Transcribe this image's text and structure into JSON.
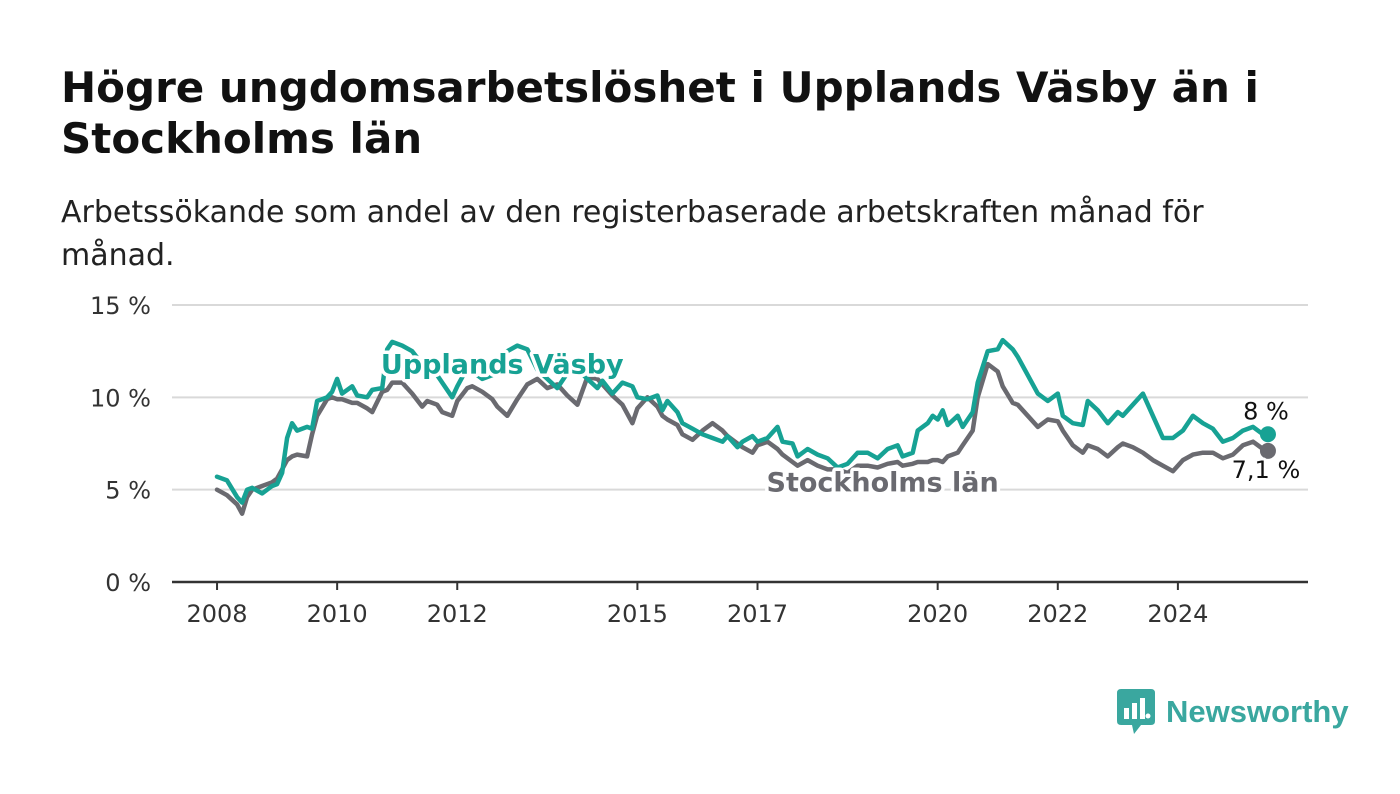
{
  "title": "Högre ungdomsarbetslöshet i Upplands Väsby än i Stockholms län",
  "subtitle": "Arbetssökande som andel av den registerbaserade arbetskraften månad för månad.",
  "brand": {
    "name": "Newsworthy",
    "color": "#3aa79f"
  },
  "chart_data": {
    "type": "line",
    "y_ticks": [
      "0 %",
      "5 %",
      "10 %",
      "15 %"
    ],
    "x_ticks": [
      "2008",
      "2010",
      "2012",
      "2015",
      "2017",
      "2020",
      "2022",
      "2024"
    ],
    "ylim": [
      0,
      15
    ],
    "xlim": [
      "2007-04",
      "2026-03"
    ],
    "grid": true,
    "legend": "direct-labels",
    "series": [
      {
        "name": "Upplands Väsby",
        "color": "#17a294",
        "end_label": "8 %",
        "points": [
          [
            "2008-01",
            5.7
          ],
          [
            "2008-03",
            5.5
          ],
          [
            "2008-05",
            4.6
          ],
          [
            "2008-06",
            4.3
          ],
          [
            "2008-07",
            5.0
          ],
          [
            "2008-08",
            5.1
          ],
          [
            "2008-10",
            4.8
          ],
          [
            "2008-12",
            5.2
          ],
          [
            "2009-01",
            5.3
          ],
          [
            "2009-02",
            5.9
          ],
          [
            "2009-03",
            7.8
          ],
          [
            "2009-04",
            8.6
          ],
          [
            "2009-05",
            8.2
          ],
          [
            "2009-07",
            8.4
          ],
          [
            "2009-08",
            8.3
          ],
          [
            "2009-09",
            9.8
          ],
          [
            "2009-11",
            10.0
          ],
          [
            "2009-12",
            10.3
          ],
          [
            "2010-01",
            11.0
          ],
          [
            "2010-02",
            10.2
          ],
          [
            "2010-04",
            10.6
          ],
          [
            "2010-05",
            10.1
          ],
          [
            "2010-07",
            10.0
          ],
          [
            "2010-08",
            10.4
          ],
          [
            "2010-10",
            10.5
          ],
          [
            "2010-11",
            12.6
          ],
          [
            "2010-12",
            13.0
          ],
          [
            "2011-02",
            12.8
          ],
          [
            "2011-04",
            12.5
          ],
          [
            "2011-06",
            11.8
          ],
          [
            "2011-07",
            11.5
          ],
          [
            "2011-09",
            11.2
          ],
          [
            "2011-10",
            10.8
          ],
          [
            "2011-12",
            10.0
          ],
          [
            "2012-01",
            10.6
          ],
          [
            "2012-03",
            11.6
          ],
          [
            "2012-04",
            11.4
          ],
          [
            "2012-06",
            11.0
          ],
          [
            "2012-08",
            11.2
          ],
          [
            "2012-09",
            12.0
          ],
          [
            "2012-11",
            12.5
          ],
          [
            "2013-01",
            12.8
          ],
          [
            "2013-03",
            12.6
          ],
          [
            "2013-05",
            11.5
          ],
          [
            "2013-07",
            11.0
          ],
          [
            "2013-09",
            10.5
          ],
          [
            "2013-11",
            11.3
          ],
          [
            "2014-01",
            11.5
          ],
          [
            "2014-03",
            11.0
          ],
          [
            "2014-05",
            10.5
          ],
          [
            "2014-06",
            10.9
          ],
          [
            "2014-08",
            10.2
          ],
          [
            "2014-10",
            10.8
          ],
          [
            "2014-12",
            10.6
          ],
          [
            "2015-01",
            10.0
          ],
          [
            "2015-03",
            9.9
          ],
          [
            "2015-05",
            10.1
          ],
          [
            "2015-06",
            9.3
          ],
          [
            "2015-07",
            9.8
          ],
          [
            "2015-09",
            9.2
          ],
          [
            "2015-10",
            8.6
          ],
          [
            "2015-12",
            8.3
          ],
          [
            "2016-02",
            8.0
          ],
          [
            "2016-04",
            7.8
          ],
          [
            "2016-06",
            7.6
          ],
          [
            "2016-07",
            7.9
          ],
          [
            "2016-09",
            7.3
          ],
          [
            "2016-10",
            7.6
          ],
          [
            "2016-12",
            7.9
          ],
          [
            "2017-01",
            7.6
          ],
          [
            "2017-03",
            7.8
          ],
          [
            "2017-05",
            8.4
          ],
          [
            "2017-06",
            7.6
          ],
          [
            "2017-08",
            7.5
          ],
          [
            "2017-09",
            6.8
          ],
          [
            "2017-11",
            7.2
          ],
          [
            "2018-01",
            6.9
          ],
          [
            "2018-03",
            6.7
          ],
          [
            "2018-05",
            6.2
          ],
          [
            "2018-07",
            6.4
          ],
          [
            "2018-09",
            7.0
          ],
          [
            "2018-11",
            7.0
          ],
          [
            "2019-01",
            6.7
          ],
          [
            "2019-03",
            7.2
          ],
          [
            "2019-05",
            7.4
          ],
          [
            "2019-06",
            6.8
          ],
          [
            "2019-08",
            7.0
          ],
          [
            "2019-09",
            8.2
          ],
          [
            "2019-11",
            8.6
          ],
          [
            "2019-12",
            9.0
          ],
          [
            "2020-01",
            8.8
          ],
          [
            "2020-02",
            9.3
          ],
          [
            "2020-03",
            8.5
          ],
          [
            "2020-05",
            9.0
          ],
          [
            "2020-06",
            8.4
          ],
          [
            "2020-08",
            9.2
          ],
          [
            "2020-09",
            10.8
          ],
          [
            "2020-11",
            12.5
          ],
          [
            "2021-01",
            12.6
          ],
          [
            "2021-02",
            13.1
          ],
          [
            "2021-04",
            12.6
          ],
          [
            "2021-05",
            12.2
          ],
          [
            "2021-07",
            11.2
          ],
          [
            "2021-09",
            10.2
          ],
          [
            "2021-11",
            9.8
          ],
          [
            "2022-01",
            10.2
          ],
          [
            "2022-02",
            9.0
          ],
          [
            "2022-04",
            8.6
          ],
          [
            "2022-06",
            8.5
          ],
          [
            "2022-07",
            9.8
          ],
          [
            "2022-09",
            9.3
          ],
          [
            "2022-11",
            8.6
          ],
          [
            "2023-01",
            9.2
          ],
          [
            "2023-02",
            9.0
          ],
          [
            "2023-04",
            9.6
          ],
          [
            "2023-06",
            10.2
          ],
          [
            "2023-08",
            9.0
          ],
          [
            "2023-10",
            7.8
          ],
          [
            "2023-12",
            7.8
          ],
          [
            "2024-02",
            8.2
          ],
          [
            "2024-04",
            9.0
          ],
          [
            "2024-06",
            8.6
          ],
          [
            "2024-08",
            8.3
          ],
          [
            "2024-10",
            7.6
          ],
          [
            "2024-12",
            7.8
          ],
          [
            "2025-02",
            8.2
          ],
          [
            "2025-04",
            8.4
          ],
          [
            "2025-06",
            8.0
          ],
          [
            "2025-07",
            8.0
          ]
        ]
      },
      {
        "name": "Stockholms län",
        "color": "#6a6a70",
        "end_label": "7,1 %",
        "points": [
          [
            "2008-01",
            5.0
          ],
          [
            "2008-03",
            4.7
          ],
          [
            "2008-05",
            4.2
          ],
          [
            "2008-06",
            3.7
          ],
          [
            "2008-07",
            4.6
          ],
          [
            "2008-08",
            5.0
          ],
          [
            "2008-10",
            5.2
          ],
          [
            "2008-12",
            5.4
          ],
          [
            "2009-01",
            5.6
          ],
          [
            "2009-02",
            6.1
          ],
          [
            "2009-03",
            6.6
          ],
          [
            "2009-04",
            6.8
          ],
          [
            "2009-05",
            6.9
          ],
          [
            "2009-07",
            6.8
          ],
          [
            "2009-08",
            8.0
          ],
          [
            "2009-09",
            9.0
          ],
          [
            "2009-11",
            9.9
          ],
          [
            "2009-12",
            10.0
          ],
          [
            "2010-01",
            9.9
          ],
          [
            "2010-02",
            9.9
          ],
          [
            "2010-04",
            9.7
          ],
          [
            "2010-05",
            9.7
          ],
          [
            "2010-07",
            9.4
          ],
          [
            "2010-08",
            9.2
          ],
          [
            "2010-10",
            10.3
          ],
          [
            "2010-11",
            10.4
          ],
          [
            "2010-12",
            10.8
          ],
          [
            "2011-02",
            10.8
          ],
          [
            "2011-04",
            10.2
          ],
          [
            "2011-06",
            9.5
          ],
          [
            "2011-07",
            9.8
          ],
          [
            "2011-09",
            9.6
          ],
          [
            "2011-10",
            9.2
          ],
          [
            "2011-12",
            9.0
          ],
          [
            "2012-01",
            9.8
          ],
          [
            "2012-03",
            10.5
          ],
          [
            "2012-04",
            10.6
          ],
          [
            "2012-06",
            10.3
          ],
          [
            "2012-08",
            9.9
          ],
          [
            "2012-09",
            9.5
          ],
          [
            "2012-11",
            9.0
          ],
          [
            "2013-01",
            9.9
          ],
          [
            "2013-03",
            10.7
          ],
          [
            "2013-05",
            11.0
          ],
          [
            "2013-07",
            10.5
          ],
          [
            "2013-09",
            10.7
          ],
          [
            "2013-11",
            10.1
          ],
          [
            "2014-01",
            9.6
          ],
          [
            "2014-03",
            11.1
          ],
          [
            "2014-05",
            11.0
          ],
          [
            "2014-06",
            10.7
          ],
          [
            "2014-08",
            10.1
          ],
          [
            "2014-10",
            9.6
          ],
          [
            "2014-12",
            8.6
          ],
          [
            "2015-01",
            9.4
          ],
          [
            "2015-03",
            10.0
          ],
          [
            "2015-05",
            9.5
          ],
          [
            "2015-06",
            9.0
          ],
          [
            "2015-07",
            8.8
          ],
          [
            "2015-09",
            8.5
          ],
          [
            "2015-10",
            8.0
          ],
          [
            "2015-12",
            7.7
          ],
          [
            "2016-02",
            8.2
          ],
          [
            "2016-04",
            8.6
          ],
          [
            "2016-06",
            8.2
          ],
          [
            "2016-07",
            7.9
          ],
          [
            "2016-09",
            7.5
          ],
          [
            "2016-10",
            7.3
          ],
          [
            "2016-12",
            7.0
          ],
          [
            "2017-01",
            7.4
          ],
          [
            "2017-03",
            7.6
          ],
          [
            "2017-05",
            7.2
          ],
          [
            "2017-06",
            6.9
          ],
          [
            "2017-08",
            6.5
          ],
          [
            "2017-09",
            6.3
          ],
          [
            "2017-11",
            6.6
          ],
          [
            "2018-01",
            6.3
          ],
          [
            "2018-03",
            6.1
          ],
          [
            "2018-05",
            6.1
          ],
          [
            "2018-07",
            5.9
          ],
          [
            "2018-09",
            6.3
          ],
          [
            "2018-11",
            6.3
          ],
          [
            "2019-01",
            6.2
          ],
          [
            "2019-03",
            6.4
          ],
          [
            "2019-05",
            6.5
          ],
          [
            "2019-06",
            6.3
          ],
          [
            "2019-08",
            6.4
          ],
          [
            "2019-09",
            6.5
          ],
          [
            "2019-11",
            6.5
          ],
          [
            "2019-12",
            6.6
          ],
          [
            "2020-01",
            6.6
          ],
          [
            "2020-02",
            6.5
          ],
          [
            "2020-03",
            6.8
          ],
          [
            "2020-05",
            7.0
          ],
          [
            "2020-06",
            7.4
          ],
          [
            "2020-08",
            8.2
          ],
          [
            "2020-09",
            10.0
          ],
          [
            "2020-11",
            11.8
          ],
          [
            "2021-01",
            11.4
          ],
          [
            "2021-02",
            10.6
          ],
          [
            "2021-04",
            9.7
          ],
          [
            "2021-05",
            9.6
          ],
          [
            "2021-07",
            9.0
          ],
          [
            "2021-09",
            8.4
          ],
          [
            "2021-11",
            8.8
          ],
          [
            "2022-01",
            8.7
          ],
          [
            "2022-02",
            8.2
          ],
          [
            "2022-04",
            7.4
          ],
          [
            "2022-06",
            7.0
          ],
          [
            "2022-07",
            7.4
          ],
          [
            "2022-09",
            7.2
          ],
          [
            "2022-11",
            6.8
          ],
          [
            "2023-01",
            7.3
          ],
          [
            "2023-02",
            7.5
          ],
          [
            "2023-04",
            7.3
          ],
          [
            "2023-06",
            7.0
          ],
          [
            "2023-08",
            6.6
          ],
          [
            "2023-10",
            6.3
          ],
          [
            "2023-12",
            6.0
          ],
          [
            "2024-02",
            6.6
          ],
          [
            "2024-04",
            6.9
          ],
          [
            "2024-06",
            7.0
          ],
          [
            "2024-08",
            7.0
          ],
          [
            "2024-10",
            6.7
          ],
          [
            "2024-12",
            6.9
          ],
          [
            "2025-02",
            7.4
          ],
          [
            "2025-04",
            7.6
          ],
          [
            "2025-06",
            7.2
          ],
          [
            "2025-07",
            7.1
          ]
        ]
      }
    ]
  }
}
